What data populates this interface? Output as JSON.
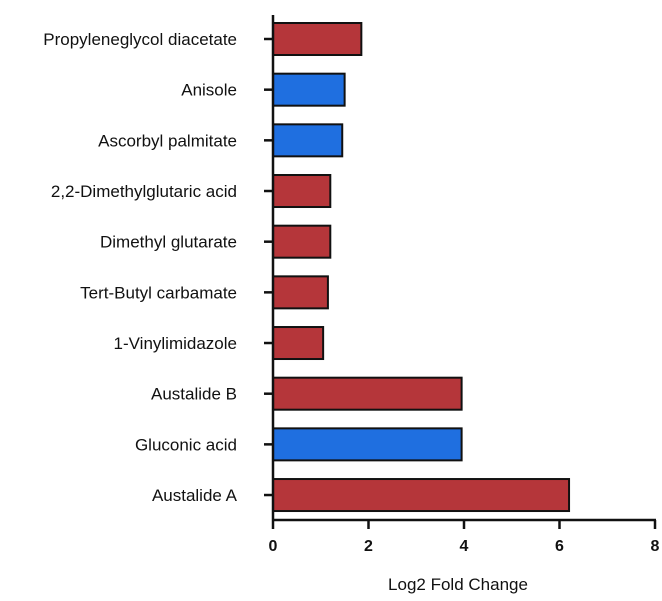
{
  "chart_data": {
    "type": "bar",
    "orientation": "horizontal",
    "title": "",
    "xlabel": "Log2 Fold Change",
    "ylabel": "",
    "xlim": [
      0,
      8
    ],
    "xticks": [
      0,
      2,
      4,
      6,
      8
    ],
    "grid": false,
    "colors": {
      "red": "#b5363a",
      "blue": "#1f6fe0",
      "outline": "#111111"
    },
    "categories": [
      "Propyleneglycol diacetate",
      "Anisole",
      "Ascorbyl palmitate",
      "2,2-Dimethylglutaric acid",
      "Dimethyl glutarate",
      "Tert-Butyl carbamate",
      "1-Vinylimidazole",
      "Austalide B",
      "Gluconic acid",
      "Austalide A"
    ],
    "values": [
      1.85,
      1.5,
      1.45,
      1.2,
      1.2,
      1.15,
      1.05,
      3.95,
      3.95,
      6.2
    ],
    "bar_colors": [
      "red",
      "blue",
      "blue",
      "red",
      "red",
      "red",
      "red",
      "red",
      "blue",
      "red"
    ]
  }
}
